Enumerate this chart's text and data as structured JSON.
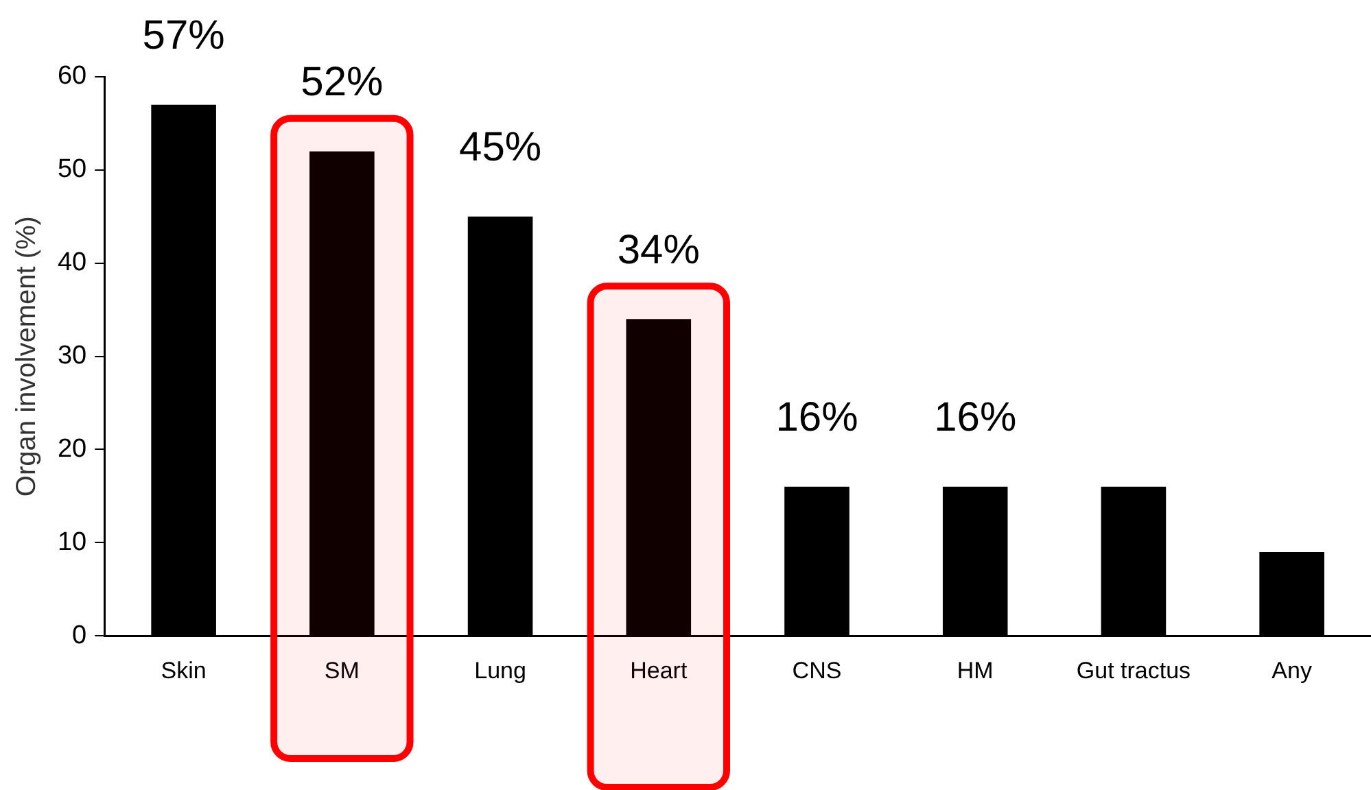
{
  "chart_data": {
    "type": "bar",
    "ylabel": "Organ involvement (%)",
    "categories": [
      "Skin",
      "SM",
      "Lung",
      "Heart",
      "CNS",
      "HM",
      "Gut tractus",
      "Any"
    ],
    "values": [
      57,
      52,
      45,
      34,
      16,
      16,
      16,
      9
    ],
    "value_labels": [
      "57%",
      "52%",
      "45%",
      "34%",
      "16%",
      "16%",
      null,
      null
    ],
    "color": "#000000",
    "ylim": [
      0,
      60
    ],
    "yticks": [
      0,
      10,
      20,
      30,
      40,
      50,
      60
    ],
    "bands": [
      {
        "axis": "x",
        "from": "SM",
        "to": "SM",
        "color": "#ff0000"
      },
      {
        "axis": "x",
        "from": "Heart",
        "to": "Heart",
        "color": "#ff0000"
      }
    ],
    "grid": false,
    "legend": false
  }
}
